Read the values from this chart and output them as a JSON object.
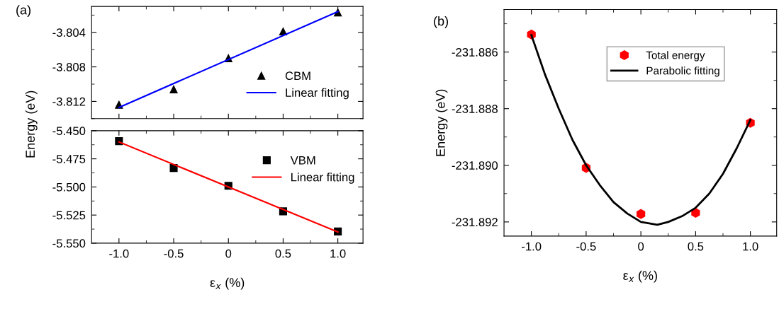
{
  "chart_data": [
    {
      "type": "scatter",
      "ylabel": "Energy (eV)",
      "annotations": [
        "(a)"
      ],
      "legend": "right",
      "tick_labels": "y",
      "xlim": [
        -1.25,
        1.23
      ],
      "ylim": [
        -3.814,
        -3.801
      ],
      "xticks": [
        -1,
        {
          "value": -0.75,
          "label": null
        },
        -0.5,
        {
          "value": -0.25,
          "label": null
        },
        0,
        {
          "value": 0.25,
          "label": null
        },
        0.5,
        {
          "value": 0.75,
          "label": null
        },
        1
      ],
      "yticks": [
        {
          "value": -3.814,
          "label": null
        },
        -3.812,
        {
          "value": -3.81,
          "label": null
        },
        -3.808,
        {
          "value": -3.806,
          "label": null
        },
        -3.804,
        {
          "value": -3.802,
          "label": null
        }
      ],
      "series": [
        {
          "name": "CBM",
          "marker": "triangle",
          "color": "#000000",
          "x": [
            -1.0,
            -0.5,
            0,
            0.5,
            1.0
          ],
          "values": [
            -3.8124,
            -3.8106,
            -3.807,
            -3.8039,
            -3.8017
          ]
        },
        {
          "name": "Linear fitting",
          "type": "line",
          "marker": "none",
          "color": "#0000ff",
          "x": [
            -1.0,
            1.0
          ],
          "values": [
            -3.8127,
            -3.8016
          ]
        }
      ]
    },
    {
      "type": "scatter",
      "xlabel": "ε$_{x}$ (%)",
      "legend": "top right",
      "xlim": [
        -1.25,
        1.23
      ],
      "ylim": [
        -5.55,
        -5.45
      ],
      "xticks": [
        {
          "value": -1,
          "label": "-1.0"
        },
        {
          "value": -0.75,
          "label": null
        },
        -0.5,
        {
          "value": -0.25,
          "label": null
        },
        0,
        {
          "value": 0.25,
          "label": null
        },
        0.5,
        {
          "value": 0.75,
          "label": null
        },
        {
          "value": 1,
          "label": "1.0"
        }
      ],
      "yticks": [
        {
          "value": -5.55,
          "label": "-5.550"
        },
        {
          "value": -5.5375,
          "label": null
        },
        -5.525,
        {
          "value": -5.5125,
          "label": null
        },
        {
          "value": -5.5,
          "label": "-5.500"
        },
        {
          "value": -5.4875,
          "label": null
        },
        -5.475,
        {
          "value": -5.4625,
          "label": null
        },
        {
          "value": -5.45,
          "label": "-5.450"
        }
      ],
      "series": [
        {
          "name": "VBM",
          "marker": "square",
          "color": "#000000",
          "x": [
            -1.0,
            -0.5,
            0,
            0.5,
            1.0
          ],
          "values": [
            -5.4593,
            -5.4832,
            -5.499,
            -5.5217,
            -5.5396
          ]
        },
        {
          "name": "Linear fitting",
          "type": "line",
          "marker": "none",
          "color": "#ff0000",
          "x": [
            -1.0,
            1.0
          ],
          "values": [
            -5.46,
            -5.54
          ]
        }
      ]
    },
    {
      "type": "scatter",
      "xlabel": "ε$_{x}$ (%)",
      "ylabel": "Energy (eV)",
      "annotations": [
        "(b)"
      ],
      "legend": "top right",
      "xlim": [
        -1.25,
        1.24
      ],
      "ylim": [
        -231.8925,
        -231.8845
      ],
      "xticks": [
        {
          "value": -1,
          "label": "-1.0"
        },
        {
          "value": -0.75,
          "label": null
        },
        -0.5,
        {
          "value": -0.25,
          "label": null
        },
        0,
        {
          "value": 0.25,
          "label": null
        },
        0.5,
        {
          "value": 0.75,
          "label": null
        },
        {
          "value": 1,
          "label": "1.0"
        }
      ],
      "yticks": [
        {
          "value": -231.892,
          "label": "-231.892"
        },
        {
          "value": -231.891,
          "label": null
        },
        {
          "value": -231.89,
          "label": "-231.890"
        },
        {
          "value": -231.889,
          "label": null
        },
        {
          "value": -231.888,
          "label": "-231.888"
        },
        {
          "value": -231.887,
          "label": null
        },
        {
          "value": -231.886,
          "label": "-231.886"
        },
        {
          "value": -231.885,
          "label": null
        }
      ],
      "series": [
        {
          "name": "Total energy",
          "color": "#ff0000",
          "x": [
            -1.0,
            -0.5,
            0,
            0.5,
            1.0
          ],
          "values": [
            -231.88538,
            -231.89009,
            -231.89172,
            -231.89168,
            -231.8885
          ]
        },
        {
          "name": "Parabolic fitting",
          "type": "line",
          "marker": "none",
          "color": "#000000",
          "x": [
            -1.0,
            -0.875,
            -0.75,
            -0.625,
            -0.5,
            -0.375,
            -0.25,
            -0.125,
            0,
            0.15,
            0.25,
            0.375,
            0.5,
            0.625,
            0.75,
            0.875,
            1.0
          ],
          "values": [
            -231.8854,
            -231.8868,
            -231.888,
            -231.8891,
            -231.89,
            -231.8907,
            -231.8913,
            -231.8917,
            -231.892,
            -231.8921,
            -231.892,
            -231.8918,
            -231.8915,
            -231.891,
            -231.8903,
            -231.8894,
            -231.8884
          ]
        }
      ]
    }
  ]
}
